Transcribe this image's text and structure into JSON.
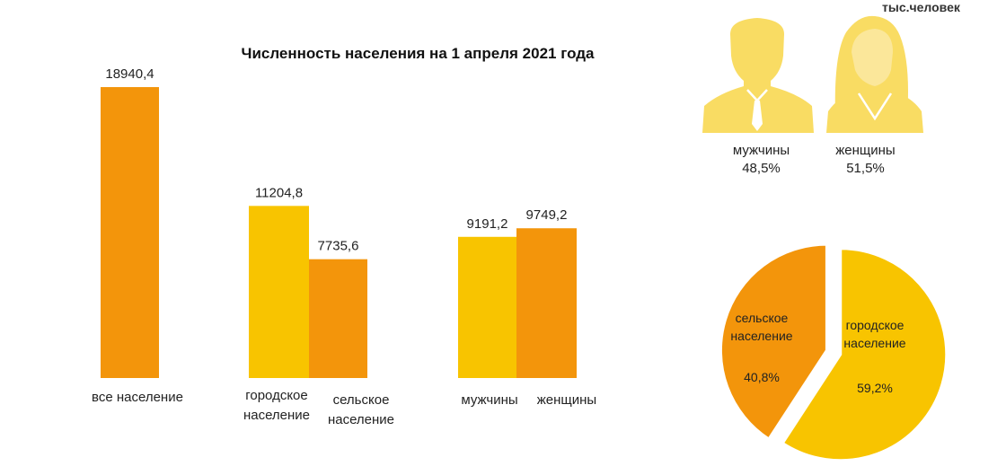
{
  "chart_title": "Численность населения на 1 апреля 2021 года",
  "units": "тыс.человек",
  "colors": {
    "orange": "#f3950b",
    "yellow": "#f8c400",
    "icon_yellow": "#f9dc63"
  },
  "gender": {
    "men": {
      "label": "мужчины",
      "percent": "48,5%",
      "icon": "man-silhouette-icon"
    },
    "women": {
      "label": "женщины",
      "percent": "51,5%",
      "icon": "woman-silhouette-icon"
    }
  },
  "chart_data": [
    {
      "type": "bar",
      "title": "Численность населения на 1 апреля 2021 года",
      "ylim": [
        0,
        18940.4
      ],
      "grid": false,
      "bars": [
        {
          "category": "все население",
          "value": 18940.4,
          "label": "18940,4",
          "color": "#f3950b"
        },
        {
          "category": "городское население",
          "value": 11204.8,
          "label": "11204,8",
          "color": "#f8c400"
        },
        {
          "category": "сельское население",
          "value": 7735.6,
          "label": "7735,6",
          "color": "#f3950b"
        },
        {
          "category": "мужчины",
          "value": 9191.2,
          "label": "9191,2",
          "color": "#f8c400"
        },
        {
          "category": "женщины",
          "value": 9749.2,
          "label": "9749,2",
          "color": "#f3950b"
        }
      ],
      "category_labels": [
        {
          "lines": [
            "все население"
          ]
        },
        {
          "lines": [
            "городское",
            "население"
          ]
        },
        {
          "lines": [
            "сельское",
            "население"
          ]
        },
        {
          "lines": [
            "мужчины"
          ]
        },
        {
          "lines": [
            "женщины"
          ]
        }
      ]
    },
    {
      "type": "pie",
      "slices": [
        {
          "lines": [
            "сельское",
            "население"
          ],
          "value": 40.8,
          "pct_label": "40,8%",
          "color": "#f3950b"
        },
        {
          "lines": [
            "городское",
            "население"
          ],
          "value": 59.2,
          "pct_label": "59,2%",
          "color": "#f8c400"
        }
      ]
    }
  ]
}
